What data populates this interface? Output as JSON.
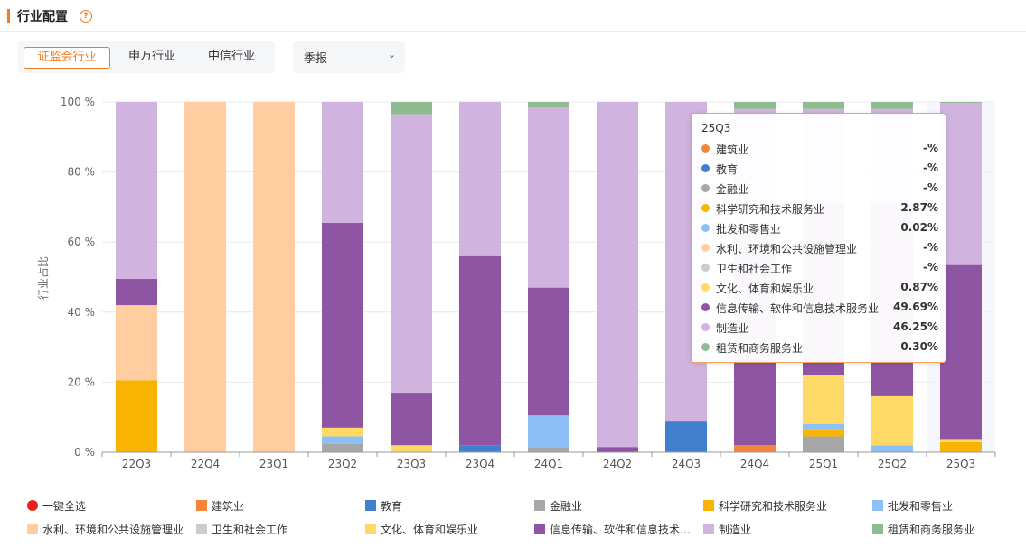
{
  "header": {
    "title": "行业配置",
    "help_icon": "?"
  },
  "tabs": [
    {
      "label": "证监会行业",
      "active": true
    },
    {
      "label": "申万行业",
      "active": false
    },
    {
      "label": "中信行业",
      "active": false
    }
  ],
  "period_select": {
    "value": "季报",
    "icon": "chevron-down-icon"
  },
  "tooltip": {
    "title": "25Q3",
    "rows": [
      {
        "name": "建筑业",
        "value": "-%"
      },
      {
        "name": "教育",
        "value": "-%"
      },
      {
        "name": "金融业",
        "value": "-%"
      },
      {
        "name": "科学研究和技术服务业",
        "value": "2.87%"
      },
      {
        "name": "批发和零售业",
        "value": "0.02%"
      },
      {
        "name": "水利、环境和公共设施管理业",
        "value": "-%"
      },
      {
        "name": "卫生和社会工作",
        "value": "-%"
      },
      {
        "name": "文化、体育和娱乐业",
        "value": "0.87%"
      },
      {
        "name": "信息传输、软件和信息技术服务业",
        "value": "49.69%"
      },
      {
        "name": "制造业",
        "value": "46.25%"
      },
      {
        "name": "租赁和商务服务业",
        "value": "0.30%"
      }
    ]
  },
  "legend": {
    "select_all": "一键全选",
    "items": [
      "建筑业",
      "教育",
      "金融业",
      "科学研究和技术服务业",
      "批发和零售业",
      "水利、环境和公共设施管理业",
      "卫生和社会工作",
      "文化、体育和娱乐业",
      "信息传输、软件和信息技术…",
      "制造业",
      "租赁和商务服务业"
    ]
  },
  "chart_data": {
    "type": "bar",
    "stacked": true,
    "ylabel": "行业占比",
    "ylim": [
      0,
      100
    ],
    "yticks": [
      "0 %",
      "20 %",
      "40 %",
      "60 %",
      "80 %",
      "100 %"
    ],
    "categories": [
      "22Q3",
      "22Q4",
      "23Q1",
      "23Q2",
      "23Q3",
      "23Q4",
      "24Q1",
      "24Q2",
      "24Q3",
      "24Q4",
      "25Q1",
      "25Q2",
      "25Q3"
    ],
    "highlighted_category": "25Q3",
    "series": [
      {
        "name": "建筑业",
        "color": "#f5853a",
        "values": [
          0,
          0,
          0,
          0,
          0,
          0,
          0,
          0,
          0,
          2,
          0,
          0,
          0
        ]
      },
      {
        "name": "教育",
        "color": "#3f7fcc",
        "values": [
          0,
          0,
          0,
          0,
          0,
          2,
          0,
          0,
          9,
          0,
          0,
          0,
          0
        ]
      },
      {
        "name": "金融业",
        "color": "#a7a7a7",
        "values": [
          0,
          0,
          0,
          2.5,
          0,
          0,
          1.5,
          0,
          0,
          0,
          4.5,
          0,
          0
        ]
      },
      {
        "name": "科学研究和技术服务业",
        "color": "#f8b400",
        "values": [
          20.5,
          0,
          0,
          0,
          0,
          0,
          0,
          0,
          0,
          0,
          2,
          0,
          2.87
        ]
      },
      {
        "name": "批发和零售业",
        "color": "#8ec0f8",
        "values": [
          0,
          0,
          0,
          2,
          0,
          0,
          9,
          0,
          0,
          0,
          1.5,
          2,
          0.02
        ]
      },
      {
        "name": "水利、环境和公共设施管理业",
        "color": "#ffcda0",
        "values": [
          21.5,
          100,
          100,
          0,
          0,
          0,
          0,
          0,
          0,
          0,
          0,
          0,
          0
        ]
      },
      {
        "name": "卫生和社会工作",
        "color": "#cccccc",
        "values": [
          0,
          0,
          0,
          0,
          0,
          0,
          0,
          0,
          0,
          0,
          0,
          0,
          0
        ]
      },
      {
        "name": "文化、体育和娱乐业",
        "color": "#ffd966",
        "values": [
          0,
          0,
          0,
          2.5,
          2,
          0,
          0,
          0,
          0,
          0,
          14,
          14,
          0.87
        ]
      },
      {
        "name": "信息传输、软件和信息技术服务业",
        "color": "#8e55a3",
        "values": [
          7.5,
          0,
          0,
          58.5,
          15,
          54,
          36.5,
          1.5,
          0,
          61,
          49,
          55,
          49.69
        ]
      },
      {
        "name": "制造业",
        "color": "#d1b3e0",
        "values": [
          50.5,
          0,
          0,
          34.5,
          79.5,
          44,
          51.5,
          98.5,
          91,
          35,
          27,
          27,
          46.25
        ]
      },
      {
        "name": "租赁和商务服务业",
        "color": "#8fbb91",
        "values": [
          0,
          0,
          0,
          0,
          3.5,
          0,
          1.5,
          0,
          0,
          2,
          2,
          2,
          0.3
        ]
      }
    ],
    "legend_position": "bottom"
  }
}
